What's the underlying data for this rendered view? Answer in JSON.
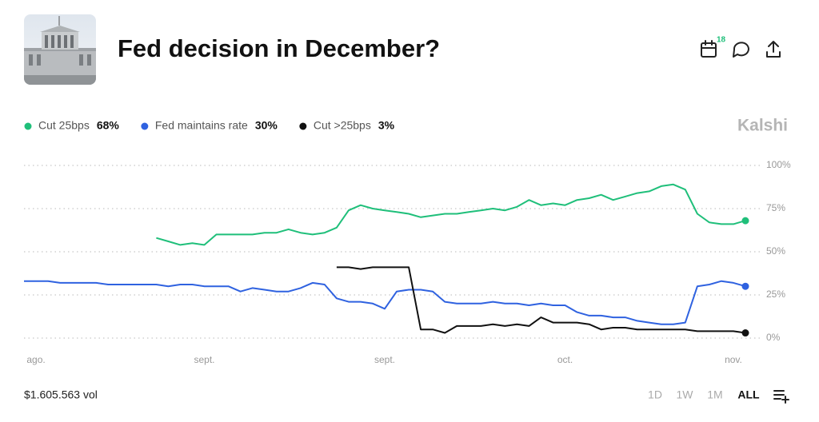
{
  "header": {
    "title": "Fed decision in December?",
    "calendar_badge": 18
  },
  "brand": "Kalshi",
  "volume": "$1.605.563 vol",
  "range_buttons": [
    "1D",
    "1W",
    "1M",
    "ALL"
  ],
  "selected_range": "ALL",
  "chart_data": {
    "type": "line",
    "x": [
      0,
      2,
      4,
      6,
      8,
      10,
      12,
      14,
      16,
      18,
      20,
      22,
      24,
      26,
      28,
      30,
      32,
      34,
      36,
      38,
      40,
      42,
      44,
      46,
      48,
      50,
      52,
      54,
      56,
      58,
      60,
      62,
      64,
      66,
      68,
      70,
      72,
      74,
      76,
      78,
      80,
      82,
      84,
      86,
      88,
      90,
      92,
      94,
      96,
      98,
      100,
      102,
      104,
      106,
      108,
      110,
      112,
      114,
      116,
      118,
      120
    ],
    "xlim": [
      0,
      120
    ],
    "xticks": [
      {
        "value": 2,
        "label": "ago."
      },
      {
        "value": 30,
        "label": "sept."
      },
      {
        "value": 60,
        "label": "sept."
      },
      {
        "value": 90,
        "label": "oct."
      },
      {
        "value": 118,
        "label": "nov."
      }
    ],
    "ylim": [
      0,
      100
    ],
    "yticks": [
      {
        "value": 0,
        "label": "0%"
      },
      {
        "value": 25,
        "label": "25%"
      },
      {
        "value": 50,
        "label": "50%"
      },
      {
        "value": 75,
        "label": "75%"
      },
      {
        "value": 100,
        "label": "100%"
      }
    ],
    "grid": true,
    "series": [
      {
        "name": "Cut 25bps",
        "color": "#1fbf7a",
        "current_label": "68%",
        "values": [
          null,
          null,
          null,
          null,
          null,
          null,
          null,
          null,
          null,
          null,
          null,
          58,
          56,
          54,
          55,
          54,
          60,
          60,
          60,
          60,
          61,
          61,
          63,
          61,
          60,
          61,
          64,
          74,
          77,
          75,
          74,
          73,
          72,
          70,
          71,
          72,
          72,
          73,
          74,
          75,
          74,
          76,
          80,
          77,
          78,
          77,
          80,
          81,
          83,
          80,
          82,
          84,
          85,
          88,
          89,
          86,
          72,
          67,
          66,
          66,
          68
        ]
      },
      {
        "name": "Fed maintains rate",
        "color": "#2f62e0",
        "current_label": "30%",
        "values": [
          33,
          33,
          33,
          32,
          32,
          32,
          32,
          31,
          31,
          31,
          31,
          31,
          30,
          31,
          31,
          30,
          30,
          30,
          27,
          29,
          28,
          27,
          27,
          29,
          32,
          31,
          23,
          21,
          21,
          20,
          17,
          27,
          28,
          28,
          27,
          21,
          20,
          20,
          20,
          21,
          20,
          20,
          19,
          20,
          19,
          19,
          15,
          13,
          13,
          12,
          12,
          10,
          9,
          8,
          8,
          9,
          30,
          31,
          33,
          32,
          30
        ]
      },
      {
        "name": "Cut >25bps",
        "color": "#111111",
        "current_label": "3%",
        "values": [
          null,
          null,
          null,
          null,
          null,
          null,
          null,
          null,
          null,
          null,
          null,
          null,
          null,
          null,
          null,
          null,
          null,
          null,
          null,
          null,
          null,
          null,
          null,
          null,
          null,
          null,
          41,
          41,
          40,
          41,
          41,
          41,
          41,
          5,
          5,
          3,
          7,
          7,
          7,
          8,
          7,
          8,
          7,
          12,
          9,
          9,
          9,
          8,
          5,
          6,
          6,
          5,
          5,
          5,
          5,
          5,
          4,
          4,
          4,
          4,
          3
        ]
      }
    ]
  }
}
